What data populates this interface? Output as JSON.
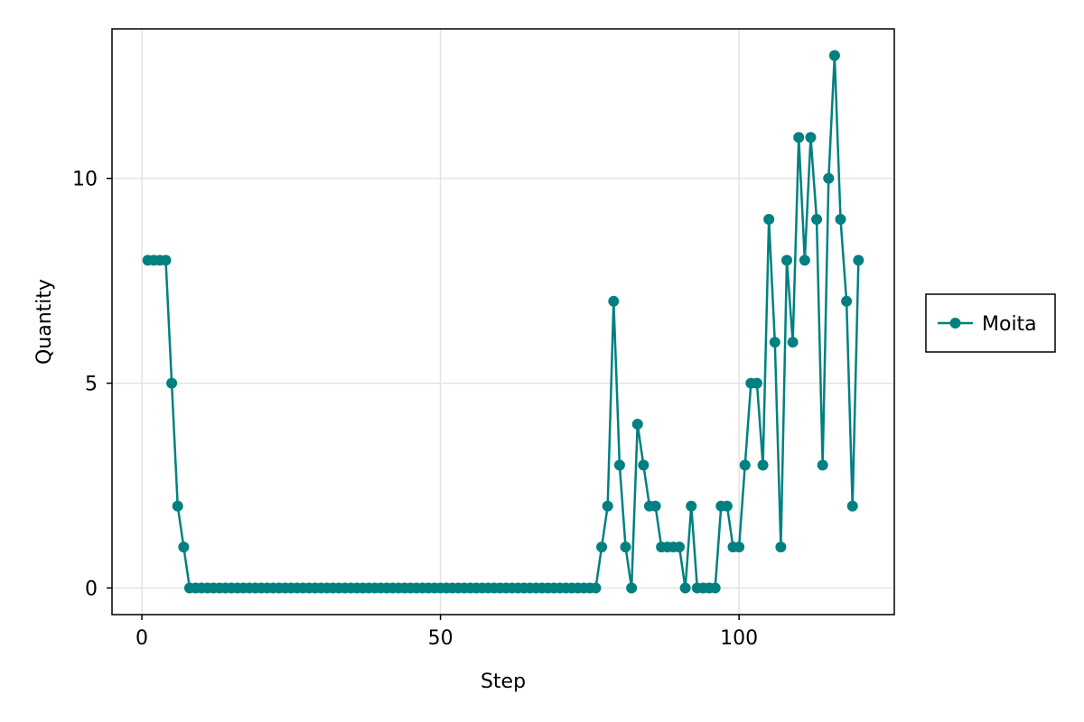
{
  "chart_data": {
    "type": "line",
    "title": "",
    "xlabel": "Step",
    "ylabel": "Quantity",
    "xlim": [
      -5,
      126
    ],
    "ylim": [
      -0.65,
      13.65
    ],
    "xticks": [
      0,
      50,
      100
    ],
    "yticks": [
      0,
      5,
      10
    ],
    "x_tick_labels": [
      "0",
      "50",
      "100"
    ],
    "y_tick_labels": [
      "0",
      "5",
      "10"
    ],
    "grid": true,
    "legend_position": "right",
    "series": [
      {
        "name": "Moita",
        "color": "#008080",
        "x": [
          1,
          2,
          3,
          4,
          5,
          6,
          7,
          8,
          9,
          10,
          11,
          12,
          13,
          14,
          15,
          16,
          17,
          18,
          19,
          20,
          21,
          22,
          23,
          24,
          25,
          26,
          27,
          28,
          29,
          30,
          31,
          32,
          33,
          34,
          35,
          36,
          37,
          38,
          39,
          40,
          41,
          42,
          43,
          44,
          45,
          46,
          47,
          48,
          49,
          50,
          51,
          52,
          53,
          54,
          55,
          56,
          57,
          58,
          59,
          60,
          61,
          62,
          63,
          64,
          65,
          66,
          67,
          68,
          69,
          70,
          71,
          72,
          73,
          74,
          75,
          76,
          77,
          78,
          79,
          80,
          81,
          82,
          83,
          84,
          85,
          86,
          87,
          88,
          89,
          90,
          91,
          92,
          93,
          94,
          95,
          96,
          97,
          98,
          99,
          100,
          101,
          102,
          103,
          104,
          105,
          106,
          107,
          108,
          109,
          110,
          111,
          112,
          113,
          114,
          115,
          116,
          117,
          118,
          119,
          120
        ],
        "y": [
          8,
          8,
          8,
          8,
          5,
          2,
          1,
          0,
          0,
          0,
          0,
          0,
          0,
          0,
          0,
          0,
          0,
          0,
          0,
          0,
          0,
          0,
          0,
          0,
          0,
          0,
          0,
          0,
          0,
          0,
          0,
          0,
          0,
          0,
          0,
          0,
          0,
          0,
          0,
          0,
          0,
          0,
          0,
          0,
          0,
          0,
          0,
          0,
          0,
          0,
          0,
          0,
          0,
          0,
          0,
          0,
          0,
          0,
          0,
          0,
          0,
          0,
          0,
          0,
          0,
          0,
          0,
          0,
          0,
          0,
          0,
          0,
          0,
          0,
          0,
          0,
          1,
          2,
          7,
          3,
          1,
          0,
          4,
          3,
          2,
          2,
          1,
          1,
          1,
          1,
          0,
          2,
          0,
          0,
          0,
          0,
          2,
          2,
          1,
          1,
          3,
          5,
          5,
          3,
          9,
          6,
          1,
          8,
          6,
          11,
          8,
          11,
          9,
          3,
          10,
          13,
          9,
          7,
          2,
          8
        ]
      }
    ]
  }
}
